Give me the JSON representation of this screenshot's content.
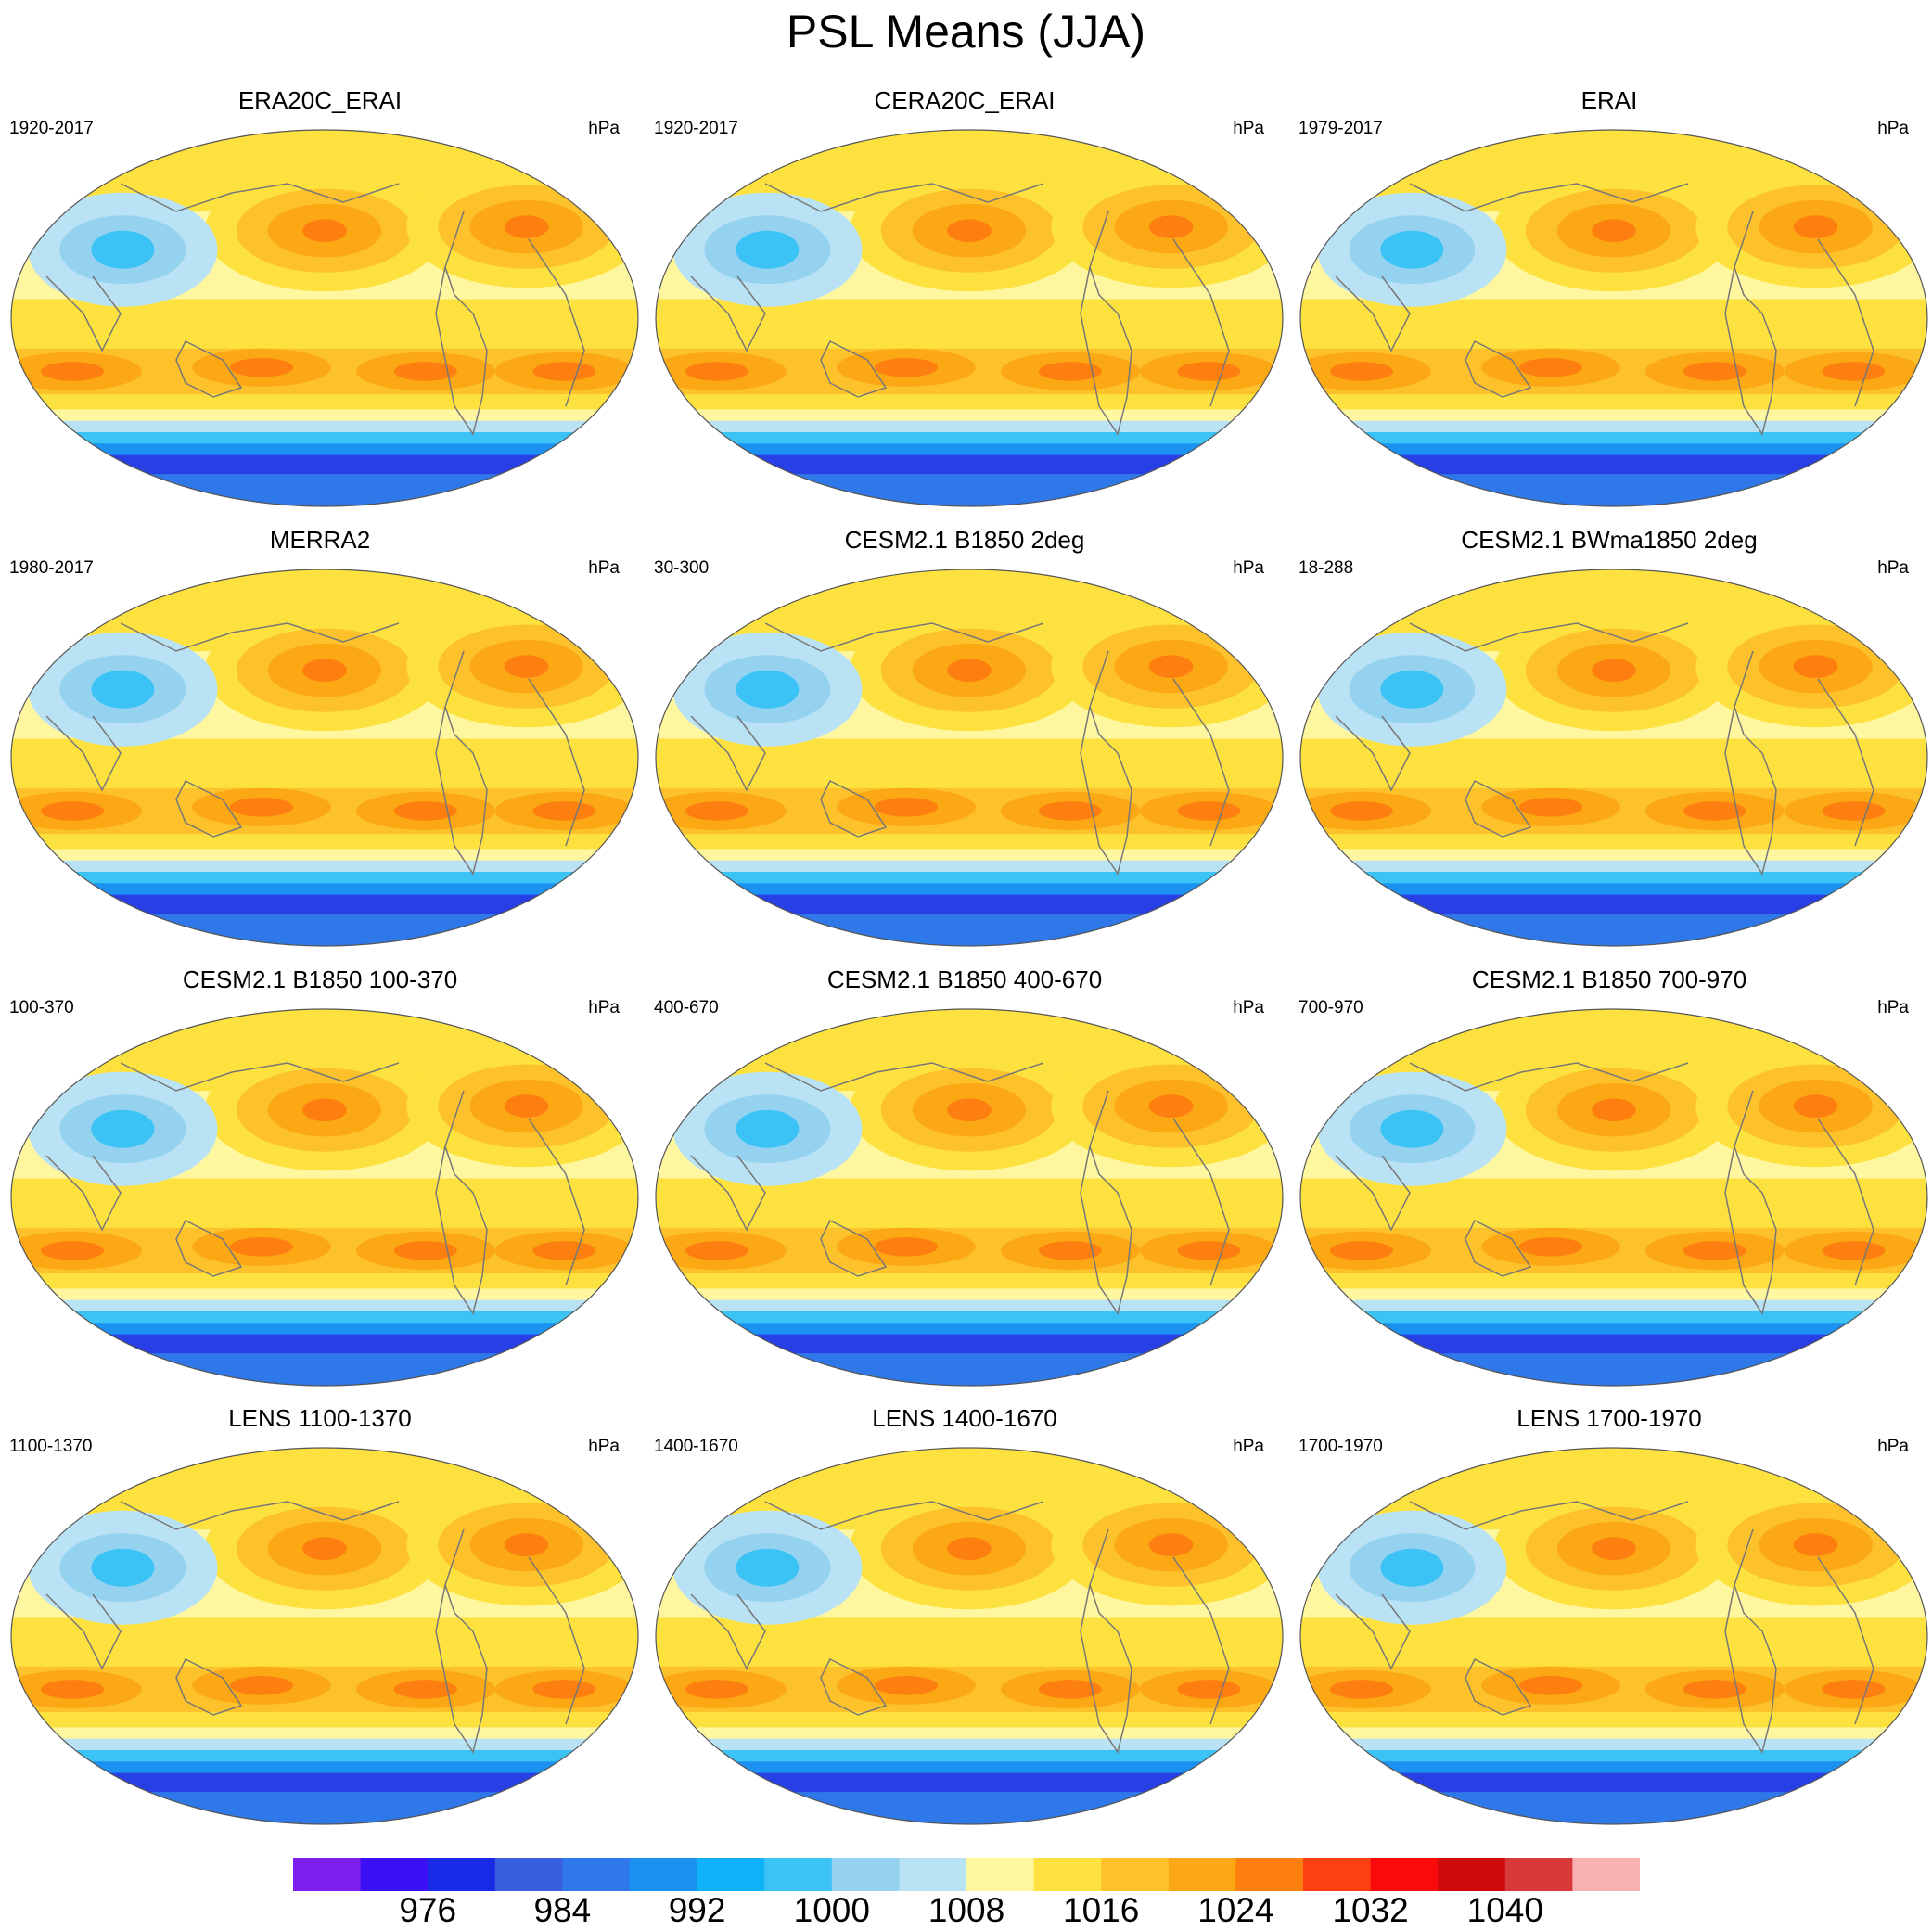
{
  "title": "PSL Means (JJA)",
  "colorbar": {
    "colors": [
      "#7f1fef",
      "#3b10f5",
      "#1a2be8",
      "#3a5ee0",
      "#2f78ea",
      "#1b92f2",
      "#10b2f7",
      "#3cc3f5",
      "#94d2f0",
      "#b9e2f4",
      "#fff6a0",
      "#fde23f",
      "#fcc12b",
      "#fca714",
      "#fd7f10",
      "#fb4114",
      "#fa0b0b",
      "#cf0a0a",
      "#d83a3a",
      "#f9b0b0"
    ],
    "labels": [
      "976",
      "984",
      "992",
      "1000",
      "1008",
      "1016",
      "1024",
      "1032",
      "1040"
    ]
  },
  "panels": [
    {
      "title": "ERA20C_ERAI",
      "period": "1920-2017",
      "units": "hPa"
    },
    {
      "title": "CERA20C_ERAI",
      "period": "1920-2017",
      "units": "hPa"
    },
    {
      "title": "ERAI",
      "period": "1979-2017",
      "units": "hPa"
    },
    {
      "title": "MERRA2",
      "period": "1980-2017",
      "units": "hPa"
    },
    {
      "title": "CESM2.1 B1850 2deg",
      "period": "30-300",
      "units": "hPa"
    },
    {
      "title": "CESM2.1 BWma1850 2deg",
      "period": "18-288",
      "units": "hPa"
    },
    {
      "title": "CESM2.1 B1850 100-370",
      "period": "100-370",
      "units": "hPa"
    },
    {
      "title": "CESM2.1 B1850 400-670",
      "period": "400-670",
      "units": "hPa"
    },
    {
      "title": "CESM2.1 B1850 700-970",
      "period": "700-970",
      "units": "hPa"
    },
    {
      "title": "LENS 1100-1370",
      "period": "1100-1370",
      "units": "hPa"
    },
    {
      "title": "LENS 1400-1670",
      "period": "1400-1670",
      "units": "hPa"
    },
    {
      "title": "LENS 1700-1970",
      "period": "1700-1970",
      "units": "hPa"
    }
  ]
}
